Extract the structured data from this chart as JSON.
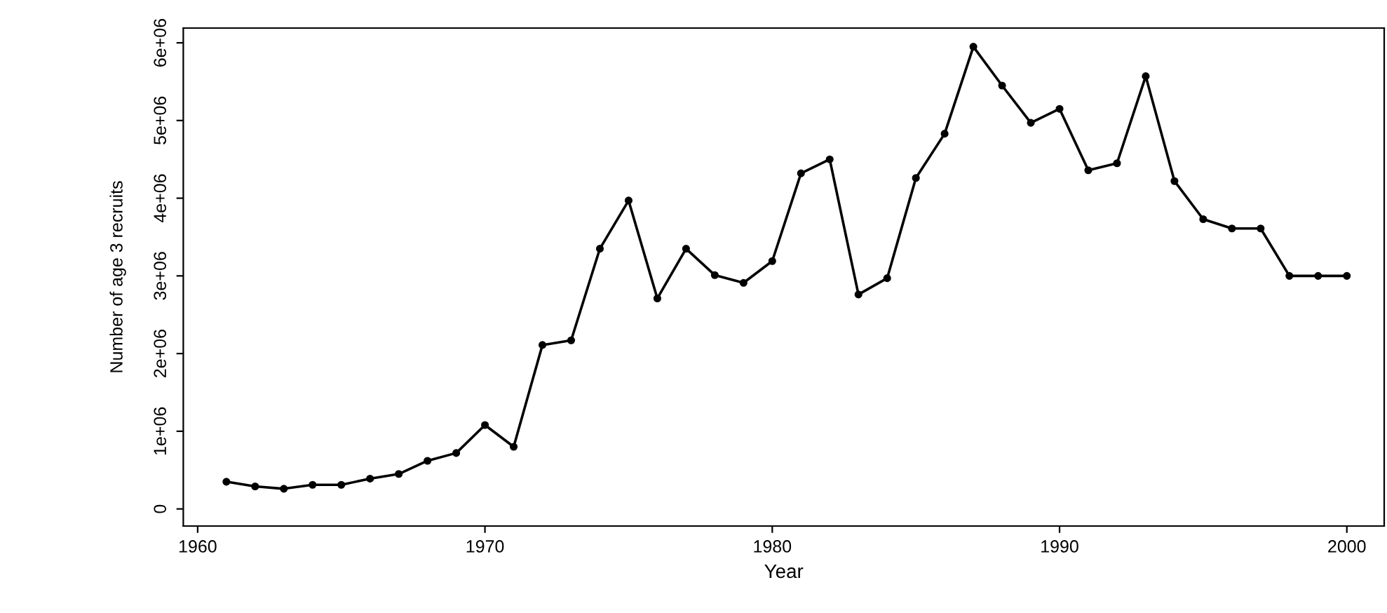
{
  "chart_data": {
    "type": "line",
    "xlabel": "Year",
    "ylabel": "Number of age 3 recruits",
    "x": [
      1961,
      1962,
      1963,
      1964,
      1965,
      1966,
      1967,
      1968,
      1969,
      1970,
      1971,
      1972,
      1973,
      1974,
      1975,
      1976,
      1977,
      1978,
      1979,
      1980,
      1981,
      1982,
      1983,
      1984,
      1985,
      1986,
      1987,
      1988,
      1989,
      1990,
      1991,
      1992,
      1993,
      1994,
      1995,
      1996,
      1997,
      1998,
      1999,
      2000
    ],
    "series": [
      {
        "color": "#000000",
        "values": [
          350000,
          290000,
          260000,
          310000,
          310000,
          390000,
          450000,
          620000,
          720000,
          1080000,
          800000,
          2110000,
          2170000,
          3350000,
          3970000,
          2710000,
          3350000,
          3010000,
          2910000,
          3190000,
          4320000,
          4500000,
          2760000,
          2970000,
          4260000,
          4830000,
          5950000,
          5450000,
          4970000,
          5150000,
          4360000,
          4450000,
          5570000,
          4220000,
          3730000,
          3610000,
          3610000,
          3000000,
          3000000,
          3000000
        ]
      }
    ],
    "xlim": [
      1959.5,
      2001.3
    ],
    "ylim": [
      -220000,
      6190000
    ],
    "xticks": [
      1960,
      1970,
      1980,
      1990,
      2000
    ],
    "yticks": [
      0,
      {
        "value": 1000000,
        "label": "1e+06"
      },
      {
        "value": 2000000,
        "label": "2e+06"
      },
      {
        "value": 3000000,
        "label": "3e+06"
      },
      {
        "value": 4000000,
        "label": "4e+06"
      },
      {
        "value": 5000000,
        "label": "5e+06"
      },
      {
        "value": 6000000,
        "label": "6e+06"
      }
    ],
    "marker": "circle",
    "line_style": "solid",
    "grid": false,
    "legend": false
  }
}
